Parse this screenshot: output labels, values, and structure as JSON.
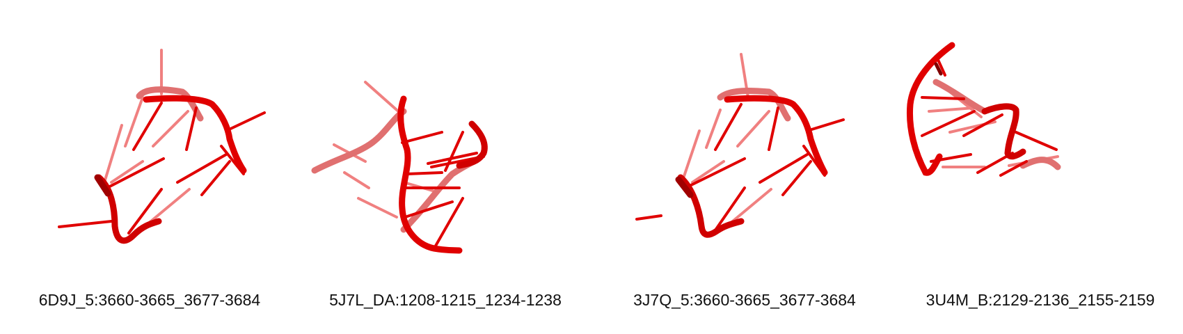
{
  "structures": [
    {
      "label": "6D9J_5:3660-3665_3677-3684",
      "color": "#e00000"
    },
    {
      "label": "5J7L_DA:1208-1215_1234-1238",
      "color": "#e00000"
    },
    {
      "label": "3J7Q_5:3660-3665_3677-3684",
      "color": "#e00000"
    },
    {
      "label": "3U4M_B:2129-2136_2155-2159",
      "color": "#e00000"
    }
  ]
}
